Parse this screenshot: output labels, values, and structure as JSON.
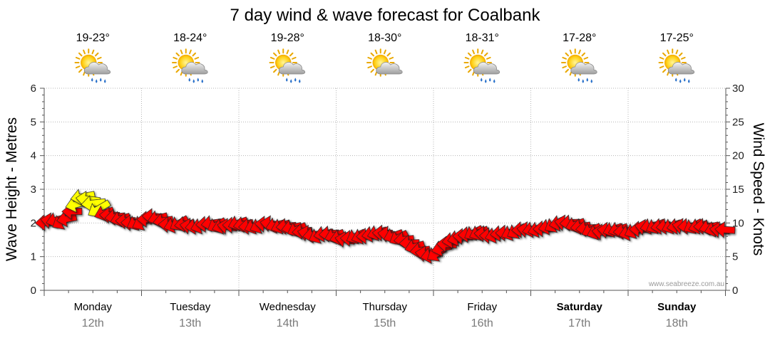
{
  "chart_data": {
    "type": "line",
    "title": "7 day wind & wave forecast for Coalbank",
    "ylabel_left": "Wave Height - Metres",
    "ylabel_right": "Wind Speed - Knots",
    "ylim_left": [
      0,
      6
    ],
    "ylim_right": [
      0,
      30
    ],
    "yticks_left": [
      "0",
      "1",
      "2",
      "3",
      "4",
      "5",
      "6"
    ],
    "yticks_right": [
      "0",
      "5",
      "10",
      "15",
      "20",
      "25",
      "30"
    ],
    "days": [
      {
        "day": "Monday",
        "date": "12th",
        "temp": "19-23°",
        "icon": "sun-cloud-rain-icon",
        "bold": false
      },
      {
        "day": "Tuesday",
        "date": "13th",
        "temp": "18-24°",
        "icon": "sun-cloud-rain-icon",
        "bold": false
      },
      {
        "day": "Wednesday",
        "date": "14th",
        "temp": "19-28°",
        "icon": "sun-cloud-rain-icon",
        "bold": false
      },
      {
        "day": "Thursday",
        "date": "15th",
        "temp": "18-30°",
        "icon": "sun-cloud-icon",
        "bold": false
      },
      {
        "day": "Friday",
        "date": "16th",
        "temp": "18-31°",
        "icon": "sun-cloud-rain-icon",
        "bold": false
      },
      {
        "day": "Saturday",
        "date": "17th",
        "temp": "17-28°",
        "icon": "sun-cloud-rain-icon",
        "bold": true
      },
      {
        "day": "Sunday",
        "date": "18th",
        "temp": "17-25°",
        "icon": "sun-cloud-rain-icon",
        "bold": true
      }
    ],
    "series": [
      {
        "name": "Wind Speed (knots)",
        "axis": "right",
        "x_days": [
          0.0,
          0.1,
          0.2,
          0.3,
          0.4,
          0.5,
          0.6,
          0.7,
          0.8,
          0.9,
          1.0,
          1.1,
          1.2,
          1.3,
          1.4,
          1.5,
          1.6,
          1.7,
          1.8,
          1.9,
          2.0,
          2.1,
          2.2,
          2.3,
          2.4,
          2.5,
          2.6,
          2.7,
          2.8,
          2.9,
          3.0,
          3.1,
          3.2,
          3.3,
          3.4,
          3.5,
          3.6,
          3.7,
          3.8,
          3.9,
          4.0,
          4.1,
          4.2,
          4.3,
          4.4,
          4.5,
          4.6,
          4.7,
          4.8,
          4.9,
          5.0,
          5.1,
          5.2,
          5.3,
          5.4,
          5.5,
          5.6,
          5.7,
          5.8,
          5.9,
          6.0,
          6.1,
          6.2,
          6.3,
          6.4,
          6.5,
          6.6,
          6.7,
          6.8,
          6.9,
          7.0
        ],
        "values": [
          10,
          10.5,
          10,
          12,
          14,
          13,
          11.5,
          11,
          10.5,
          10,
          10,
          11,
          10.5,
          9.5,
          10,
          9.5,
          9.5,
          10,
          9.5,
          9.5,
          10,
          9.5,
          9.5,
          10,
          9.5,
          9.5,
          9,
          8.5,
          8,
          8.5,
          8,
          7.5,
          8,
          8,
          8.5,
          8.5,
          8,
          7.5,
          6.5,
          5.5,
          5,
          6.5,
          7.5,
          8,
          8.5,
          8.5,
          8,
          8.5,
          8.5,
          9,
          9,
          9,
          9.5,
          10,
          10,
          9.5,
          9,
          8.5,
          9,
          9,
          8.5,
          9,
          9.5,
          9.5,
          9.5,
          9.5,
          9.5,
          9.5,
          9.5,
          9,
          9
        ]
      }
    ],
    "wave_height_m": [],
    "credit": "www.seabreeze.com.au"
  }
}
